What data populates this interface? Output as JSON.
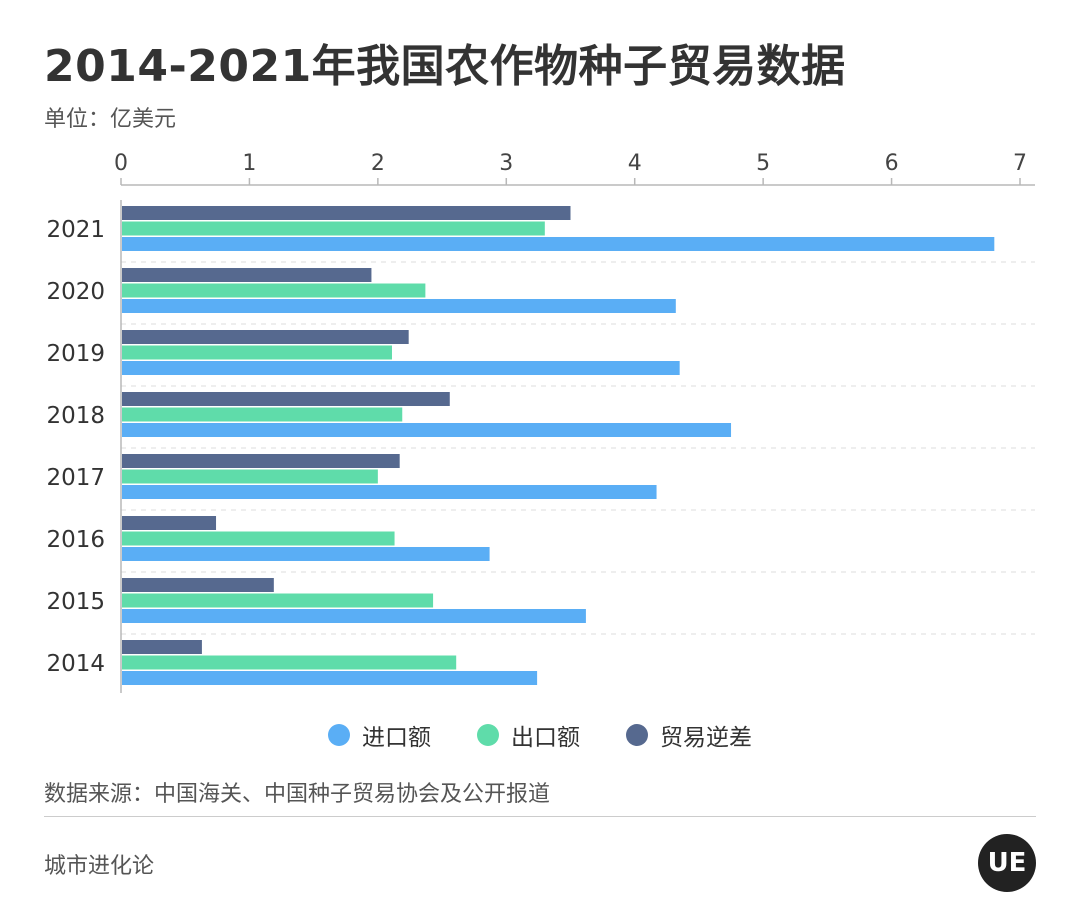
{
  "header": {
    "title": "2014-2021年我国农作物种子贸易数据",
    "unit": "单位：亿美元"
  },
  "legend": [
    {
      "label": "进口额",
      "color": "#5aaef5"
    },
    {
      "label": "出口额",
      "color": "#5fdcaa"
    },
    {
      "label": "贸易逆差",
      "color": "#56698f"
    }
  ],
  "footer": {
    "source": "数据来源：中国海关、中国种子贸易协会及公开报道",
    "brand": "城市进化论",
    "logo_text": "UE"
  },
  "chart_data": {
    "type": "bar",
    "orientation": "horizontal",
    "categories": [
      "2021",
      "2020",
      "2019",
      "2018",
      "2017",
      "2016",
      "2015",
      "2014"
    ],
    "series": [
      {
        "name": "贸易逆差",
        "color": "#56698f",
        "values": [
          3.5,
          1.95,
          2.24,
          2.56,
          2.17,
          0.74,
          1.19,
          0.63
        ]
      },
      {
        "name": "出口额",
        "color": "#5fdcaa",
        "values": [
          3.3,
          2.37,
          2.11,
          2.19,
          2.0,
          2.13,
          2.43,
          2.61
        ]
      },
      {
        "name": "进口额",
        "color": "#5aaef5",
        "values": [
          6.8,
          4.32,
          4.35,
          4.75,
          4.17,
          2.87,
          3.62,
          3.24
        ]
      }
    ],
    "xlim": [
      0,
      7
    ],
    "xticks": [
      0,
      1,
      2,
      3,
      4,
      5,
      6,
      7
    ],
    "grid": "horizontal-dashed",
    "legend_position": "bottom",
    "title": "2014-2021年我国农作物种子贸易数据",
    "xlabel": "",
    "ylabel": ""
  }
}
